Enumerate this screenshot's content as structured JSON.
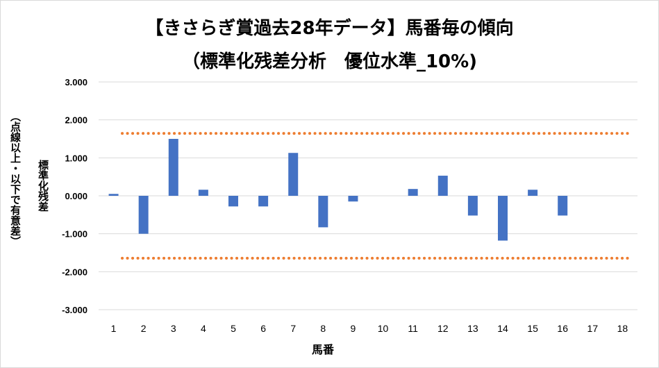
{
  "chart_data": {
    "type": "bar",
    "title": "【きさらぎ賞過去28年データ】馬番毎の傾向",
    "subtitle": "（標準化残差分析　優位水準_10%)",
    "ylabel_main": "標準化残差",
    "ylabel_sub": "（点線以上・以下で有意差）",
    "xlabel": "馬番",
    "categories": [
      "1",
      "2",
      "3",
      "4",
      "5",
      "6",
      "7",
      "8",
      "9",
      "10",
      "11",
      "12",
      "13",
      "14",
      "15",
      "16",
      "17",
      "18"
    ],
    "values": [
      0.05,
      -1.0,
      1.5,
      0.16,
      -0.28,
      -0.28,
      1.13,
      -0.83,
      -0.15,
      0,
      0.18,
      0.53,
      -0.52,
      -1.18,
      0.16,
      -0.52,
      0,
      0
    ],
    "ylim": [
      -3,
      3
    ],
    "yticks": [
      "-3.000",
      "-2.000",
      "-1.000",
      "0.000",
      "1.000",
      "2.000",
      "3.000"
    ],
    "thresholds": [
      1.645,
      -1.645
    ],
    "bar_color": "#4472c4",
    "threshold_color": "#ed7d31",
    "grid": true,
    "legend": "none"
  }
}
